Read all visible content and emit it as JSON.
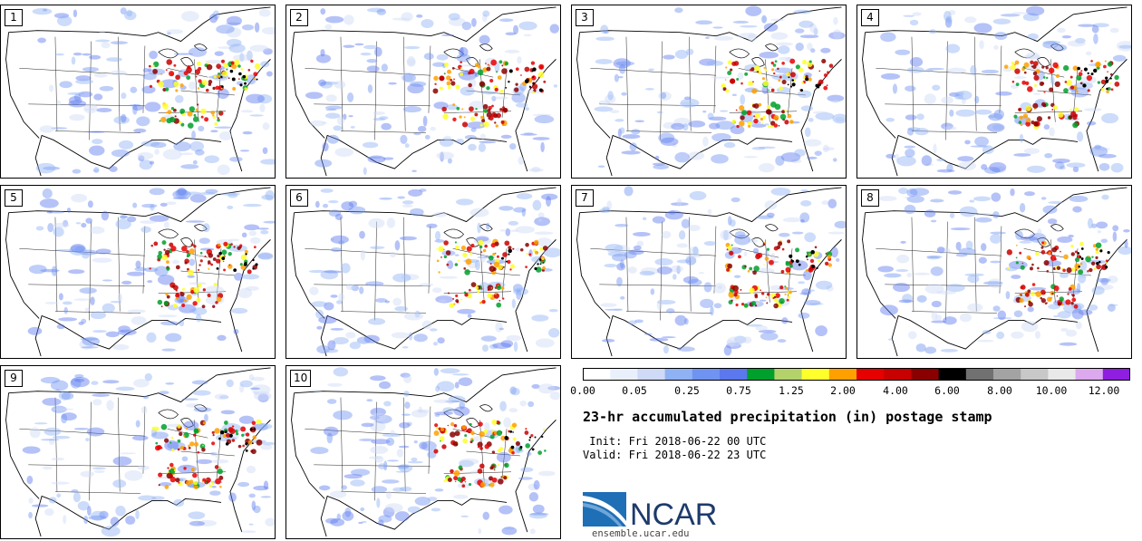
{
  "panels": [
    {
      "label": "1",
      "seed": 11
    },
    {
      "label": "2",
      "seed": 23
    },
    {
      "label": "3",
      "seed": 37
    },
    {
      "label": "4",
      "seed": 41
    },
    {
      "label": "5",
      "seed": 53
    },
    {
      "label": "6",
      "seed": 67
    },
    {
      "label": "7",
      "seed": 79
    },
    {
      "label": "8",
      "seed": 83
    },
    {
      "label": "9",
      "seed": 97
    },
    {
      "label": "10",
      "seed": 101
    }
  ],
  "colorbar": {
    "colors": [
      "#ffffff",
      "#e9f0fb",
      "#cfdaf7",
      "#8fb2f5",
      "#6f93f1",
      "#5b78ef",
      "#00a02c",
      "#b3d36a",
      "#ffff2c",
      "#ffa000",
      "#e60000",
      "#c80000",
      "#8a0000",
      "#000000",
      "#717171",
      "#a3a3a3",
      "#c8c8c8",
      "#e9e9e9",
      "#dca9ee",
      "#8f1ee0"
    ],
    "tick_labels": [
      "0.00",
      "0.05",
      "0.25",
      "0.75",
      "1.25",
      "2.00",
      "4.00",
      "6.00",
      "8.00",
      "10.00",
      "12.00"
    ]
  },
  "title": "23-hr accumulated precipitation (in) postage stamp",
  "init_line": " Init: Fri 2018-06-22 00 UTC",
  "valid_line": "Valid: Fri 2018-06-22 23 UTC",
  "logo": {
    "text": "NCAR",
    "text_color": "#1d3a6b",
    "swoosh_color": "#1f6fb6"
  },
  "url": "ensemble.ucar.edu"
}
